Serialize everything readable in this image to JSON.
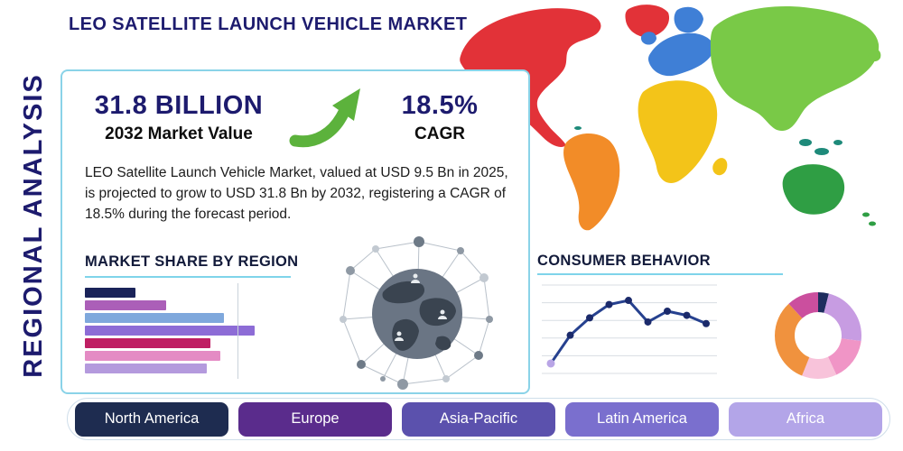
{
  "page": {
    "title": "LEO SATELLITE LAUNCH VEHICLE MARKET",
    "side_label": "REGIONAL ANALYSIS"
  },
  "summary": {
    "market_value": "31.8 BILLION",
    "market_value_label": "2032 Market Value",
    "cagr_value": "18.5%",
    "cagr_label": "CAGR",
    "description": "LEO Satellite Launch Vehicle Market, valued at USD 9.5 Bn in 2025, is projected to grow to USD 31.8 Bn by 2032, registering a CAGR of 18.5% during the forecast period."
  },
  "sections": {
    "market_share_title": "MARKET SHARE BY REGION",
    "consumer_behavior_title": "CONSUMER BEHAVIOR"
  },
  "regions": [
    {
      "label": "North America",
      "color": "#1e2c50"
    },
    {
      "label": "Europe",
      "color": "#5a2c8c"
    },
    {
      "label": "Asia-Pacific",
      "color": "#5b51ad"
    },
    {
      "label": "Latin America",
      "color": "#7a6fce"
    },
    {
      "label": "Africa",
      "color": "#b3a5e8"
    }
  ],
  "map": {
    "colors": {
      "north_america": "#e23238",
      "greenland": "#e23238",
      "south_america": "#f28c28",
      "europe": "#3f7fd6",
      "africa": "#f3c419",
      "asia": "#79c947",
      "australia": "#2f9e44",
      "islands": "#1e8a7a"
    }
  },
  "theme": {
    "title_color": "#1d1b6e",
    "accent_line_color": "#7fd4ea",
    "card_border_color": "#8ad3e8",
    "arrow_green": "#5cb23c"
  },
  "chart_data": [
    {
      "type": "bar",
      "title": "MARKET SHARE BY REGION",
      "orientation": "horizontal",
      "values": [
        30,
        48,
        82,
        100,
        74,
        80,
        72
      ],
      "xlim": [
        0,
        100
      ],
      "gridline_at": 90,
      "bar_labels_visible": false,
      "colors": [
        "#1a2359",
        "#ab5fb8",
        "#7fa8dc",
        "#8d6cd6",
        "#bf1e63",
        "#e48bc4",
        "#b49add"
      ]
    },
    {
      "type": "line",
      "title": "CONSUMER BEHAVIOR",
      "x": [
        1,
        2,
        3,
        4,
        5,
        6,
        7,
        8,
        9
      ],
      "values": [
        12,
        46,
        67,
        83,
        88,
        62,
        75,
        70,
        60
      ],
      "ylim": [
        0,
        100
      ],
      "grid": "horizontal",
      "line_color": "#26418f",
      "point_color": "#1b2a6b",
      "first_point_color": "#b9a5e6"
    },
    {
      "type": "pie",
      "donut": true,
      "legend_visible": false,
      "slices": [
        {
          "value": 4,
          "color": "#1d2d5e"
        },
        {
          "value": 23,
          "color": "#c79ce2"
        },
        {
          "value": 16,
          "color": "#f095c6"
        },
        {
          "value": 13,
          "color": "#f8c3da"
        },
        {
          "value": 32,
          "color": "#f0923e"
        },
        {
          "value": 12,
          "color": "#cb4f9e"
        }
      ]
    }
  ]
}
